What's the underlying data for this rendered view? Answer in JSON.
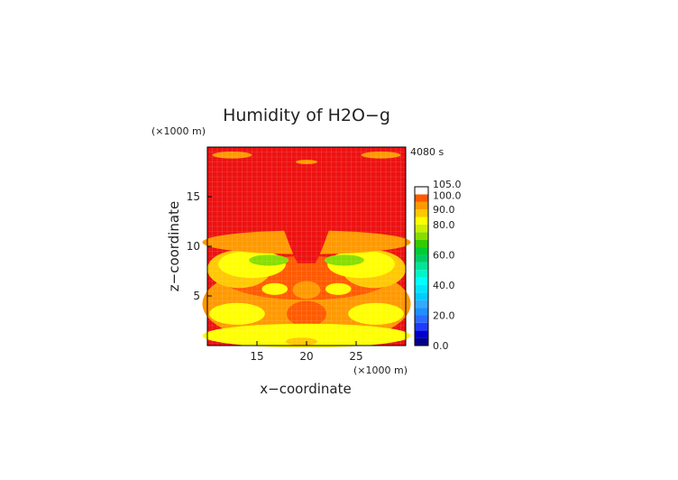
{
  "chart_data": {
    "type": "heatmap",
    "title": "Humidity of H2O−g",
    "time_label": "4080 s",
    "x_axis": {
      "label": "x−coordinate",
      "unit_label": "(×1000 m)",
      "range": [
        10,
        30
      ],
      "ticks": [
        15,
        20,
        25
      ],
      "tick_labels": [
        "15",
        "20",
        "25"
      ]
    },
    "y_axis": {
      "label": "z−coordinate",
      "unit_label": "(×1000 m)",
      "range": [
        0,
        20
      ],
      "ticks": [
        5,
        10,
        15
      ],
      "tick_labels": [
        "5",
        "10",
        "15"
      ]
    },
    "colorbar": {
      "levels": [
        0,
        5,
        10,
        15,
        20,
        25,
        30,
        35,
        40,
        45,
        50,
        55,
        60,
        65,
        70,
        75,
        80,
        85,
        90,
        95,
        100,
        105
      ],
      "tick_values": [
        0,
        20,
        40,
        60,
        80,
        90,
        100,
        105
      ],
      "tick_labels": [
        "0.0",
        "20.0",
        "40.0",
        "60.0",
        "80.0",
        "90.0",
        "100.0",
        "105.0"
      ],
      "colors": [
        "#00008b",
        "#0000cd",
        "#1e3cff",
        "#2b6bff",
        "#1e90ff",
        "#33aaff",
        "#00ccff",
        "#00e5ff",
        "#00ffff",
        "#00f5c8",
        "#00e59a",
        "#00cc66",
        "#00cc33",
        "#33cc00",
        "#88dd00",
        "#ccee00",
        "#ffff00",
        "#ffc800",
        "#ff9900",
        "#ff5a00",
        "#ee1111",
        "#ffaaaa"
      ]
    },
    "fields": {
      "background_value": 98,
      "cloud_value": 104
    }
  }
}
